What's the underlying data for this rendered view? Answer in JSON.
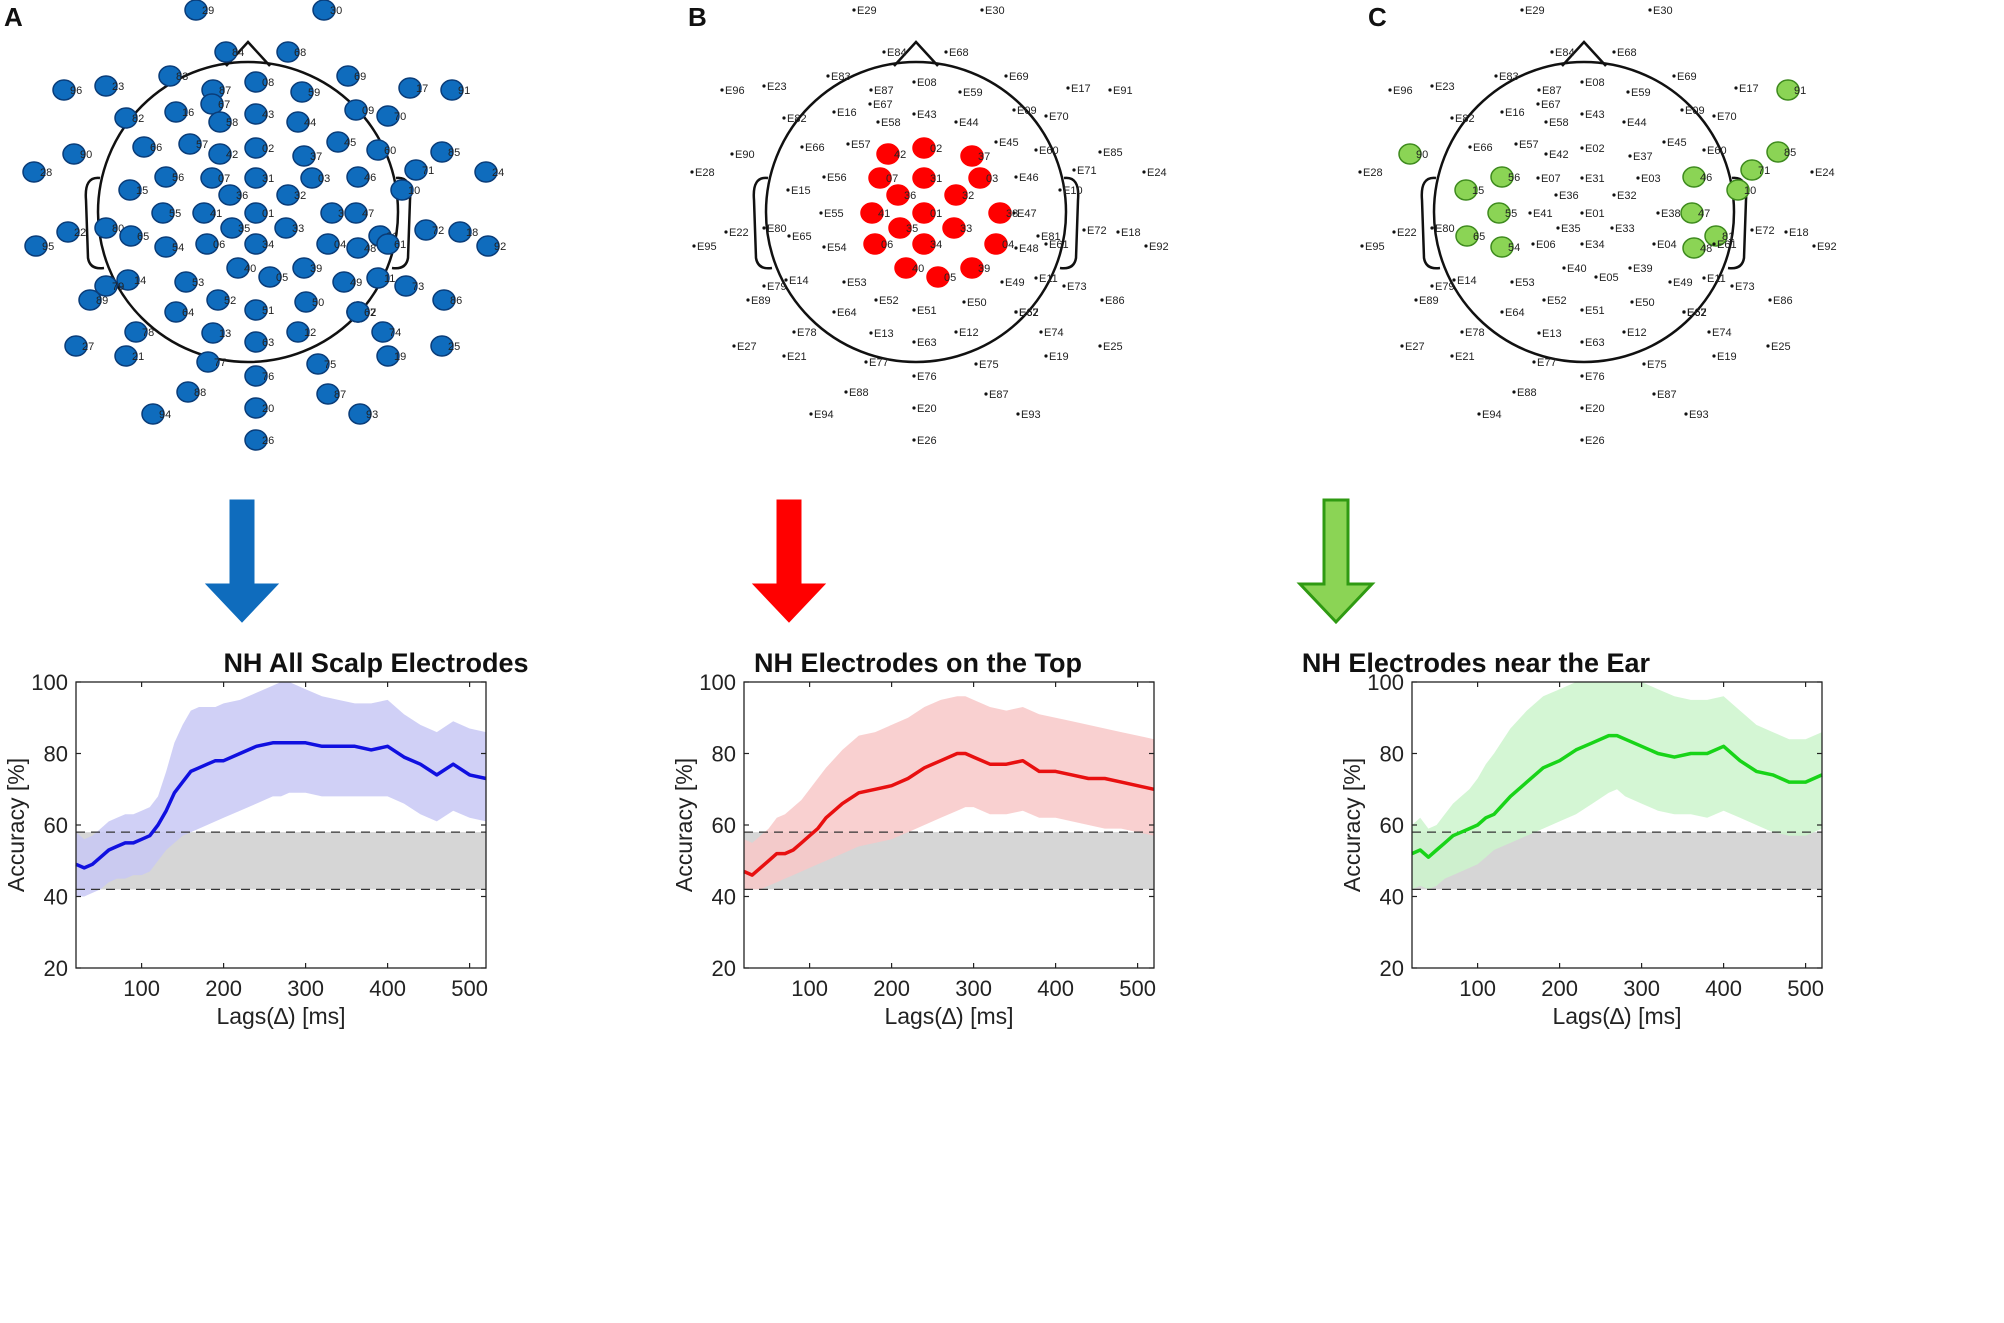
{
  "figure": {
    "panels": [
      {
        "letter": "A",
        "color": "#0f6cbd",
        "arrow_color": "#0f6cbd",
        "arrow_style": "solid",
        "highlight_mode": "all",
        "highlighted": [],
        "chart_title": "NH All Scalp Electrodes"
      },
      {
        "letter": "B",
        "color": "#ff0000",
        "arrow_color": "#ff0000",
        "arrow_style": "solid",
        "highlight_mode": "list",
        "highlighted": [
          "E02",
          "E37",
          "E07",
          "E31",
          "E03",
          "E36",
          "E32",
          "E41",
          "E01",
          "E38",
          "E35",
          "E33",
          "E06",
          "E34",
          "E04",
          "E40",
          "E05",
          "E39",
          "E42"
        ],
        "chart_title": "NH Electrodes on the Top"
      },
      {
        "letter": "C",
        "color": "#8bd455",
        "arrow_color": "#8bd455",
        "arrow_style": "outlined",
        "highlight_mode": "list",
        "highlighted": [
          "E90",
          "E91",
          "E15",
          "E56",
          "E55",
          "E65",
          "E54",
          "E85",
          "E71",
          "E46",
          "E47",
          "E10",
          "E81",
          "E48"
        ],
        "chart_title": "NH Electrodes near the Ear"
      }
    ],
    "electrodes": [
      "E29",
      "E30",
      "E84",
      "E68",
      "E83",
      "E87",
      "E08",
      "E69",
      "E17",
      "E96",
      "E91",
      "E23",
      "E82",
      "E16",
      "E67",
      "E59",
      "E70",
      "E43",
      "E58",
      "E44",
      "E45",
      "E09",
      "E86",
      "E66",
      "E57",
      "E02",
      "E37",
      "E60",
      "E42",
      "E85",
      "E28",
      "E90",
      "E07",
      "E31",
      "E03",
      "E71",
      "E24",
      "E81",
      "E56",
      "E46",
      "E15",
      "E55",
      "E41",
      "E36",
      "E32",
      "E38",
      "E10",
      "E47",
      "E35",
      "E01",
      "E22",
      "E80",
      "E33",
      "E72",
      "E18",
      "E65",
      "E06",
      "E34",
      "E04",
      "E61",
      "E95",
      "E54",
      "E48",
      "E92",
      "E40",
      "E39",
      "E05",
      "E14",
      "E53",
      "E49",
      "E11",
      "E73",
      "E89",
      "E64",
      "E79",
      "E62",
      "E52",
      "E51",
      "E50",
      "E67b",
      "E78",
      "E13",
      "E63",
      "E12",
      "E74",
      "E27",
      "E21",
      "E77",
      "E76",
      "E75",
      "E19",
      "E25",
      "E88",
      "E20",
      "E87b",
      "E94",
      "E93",
      "E26",
      "E62b"
    ],
    "electrode_labels": {
      "E67b": "E67",
      "E87b": "E87",
      "E62b": "E62"
    }
  },
  "chart_data": [
    {
      "type": "line",
      "title": "NH All Scalp Electrodes",
      "xlabel": "Lags(∆) [ms]",
      "ylabel": "Accuracy [%]",
      "xlim": [
        20,
        520
      ],
      "ylim": [
        20,
        100
      ],
      "xticks": [
        100,
        200,
        300,
        400,
        500
      ],
      "yticks": [
        20,
        40,
        60,
        80,
        100
      ],
      "line_color": "#1010e0",
      "band_color": "#c8c8f4",
      "chance_band": [
        42,
        58
      ],
      "x": [
        20,
        30,
        40,
        50,
        60,
        70,
        80,
        90,
        100,
        110,
        120,
        130,
        140,
        150,
        160,
        170,
        180,
        190,
        200,
        220,
        240,
        260,
        270,
        280,
        300,
        320,
        340,
        360,
        380,
        400,
        420,
        440,
        460,
        480,
        500,
        520
      ],
      "mean": [
        49,
        48,
        49,
        51,
        53,
        54,
        55,
        55,
        56,
        57,
        60,
        64,
        69,
        72,
        75,
        76,
        77,
        78,
        78,
        80,
        82,
        83,
        83,
        83,
        83,
        82,
        82,
        82,
        81,
        82,
        79,
        77,
        74,
        77,
        74,
        73
      ],
      "upper": [
        58,
        56,
        57,
        59,
        61,
        62,
        63,
        63,
        64,
        65,
        68,
        75,
        83,
        88,
        92,
        93,
        93,
        93,
        94,
        95,
        97,
        99,
        100,
        100,
        98,
        96,
        95,
        94,
        94,
        95,
        91,
        88,
        86,
        89,
        87,
        86
      ],
      "lower": [
        40,
        40,
        41,
        42,
        44,
        45,
        45,
        46,
        46,
        47,
        50,
        53,
        55,
        57,
        58,
        59,
        60,
        61,
        62,
        64,
        66,
        68,
        68,
        69,
        69,
        68,
        68,
        68,
        68,
        68,
        66,
        63,
        61,
        64,
        62,
        61
      ]
    },
    {
      "type": "line",
      "title": "NH Electrodes on the Top",
      "xlabel": "Lags(∆) [ms]",
      "ylabel": "Accuracy [%]",
      "xlim": [
        20,
        520
      ],
      "ylim": [
        20,
        100
      ],
      "xticks": [
        100,
        200,
        300,
        400,
        500
      ],
      "yticks": [
        20,
        40,
        60,
        80,
        100
      ],
      "line_color": "#e81010",
      "band_color": "#f8c8c8",
      "chance_band": [
        42,
        58
      ],
      "x": [
        20,
        30,
        40,
        50,
        60,
        70,
        80,
        90,
        100,
        110,
        120,
        140,
        160,
        180,
        200,
        220,
        240,
        260,
        280,
        290,
        300,
        320,
        340,
        360,
        380,
        400,
        420,
        440,
        460,
        480,
        500,
        520
      ],
      "mean": [
        47,
        46,
        48,
        50,
        52,
        52,
        53,
        55,
        57,
        59,
        62,
        66,
        69,
        70,
        71,
        73,
        76,
        78,
        80,
        80,
        79,
        77,
        77,
        78,
        75,
        75,
        74,
        73,
        73,
        72,
        71,
        70
      ],
      "upper": [
        56,
        55,
        57,
        59,
        62,
        63,
        65,
        67,
        70,
        73,
        76,
        81,
        85,
        86,
        88,
        90,
        93,
        95,
        96,
        96,
        95,
        93,
        92,
        93,
        91,
        90,
        89,
        88,
        87,
        86,
        85,
        84
      ],
      "lower": [
        42,
        42,
        42,
        43,
        44,
        45,
        46,
        47,
        48,
        49,
        50,
        52,
        54,
        55,
        56,
        58,
        60,
        62,
        64,
        65,
        65,
        63,
        63,
        64,
        62,
        62,
        61,
        60,
        59,
        59,
        58,
        57
      ]
    },
    {
      "type": "line",
      "title": "NH Electrodes near the Ear",
      "xlabel": "Lags(∆) [ms]",
      "ylabel": "Accuracy [%]",
      "xlim": [
        20,
        520
      ],
      "ylim": [
        20,
        100
      ],
      "xticks": [
        100,
        200,
        300,
        400,
        500
      ],
      "yticks": [
        20,
        40,
        60,
        80,
        100
      ],
      "line_color": "#18d418",
      "band_color": "#ccf4cc",
      "chance_band": [
        42,
        58
      ],
      "x": [
        20,
        30,
        40,
        50,
        60,
        70,
        80,
        90,
        100,
        110,
        120,
        140,
        160,
        180,
        200,
        220,
        240,
        260,
        270,
        280,
        300,
        320,
        340,
        360,
        380,
        400,
        420,
        440,
        460,
        480,
        500,
        520
      ],
      "mean": [
        52,
        53,
        51,
        53,
        55,
        57,
        58,
        59,
        60,
        62,
        63,
        68,
        72,
        76,
        78,
        81,
        83,
        85,
        85,
        84,
        82,
        80,
        79,
        80,
        80,
        82,
        78,
        75,
        74,
        72,
        72,
        74
      ],
      "upper": [
        60,
        62,
        59,
        60,
        63,
        66,
        68,
        70,
        73,
        77,
        80,
        87,
        92,
        96,
        98,
        100,
        100,
        100,
        100,
        100,
        100,
        98,
        96,
        95,
        95,
        96,
        92,
        88,
        86,
        84,
        84,
        86
      ],
      "lower": [
        42,
        43,
        42,
        43,
        45,
        46,
        47,
        48,
        49,
        51,
        53,
        55,
        57,
        59,
        61,
        63,
        66,
        69,
        70,
        68,
        66,
        64,
        63,
        63,
        62,
        64,
        62,
        60,
        58,
        57,
        57,
        59
      ]
    }
  ]
}
